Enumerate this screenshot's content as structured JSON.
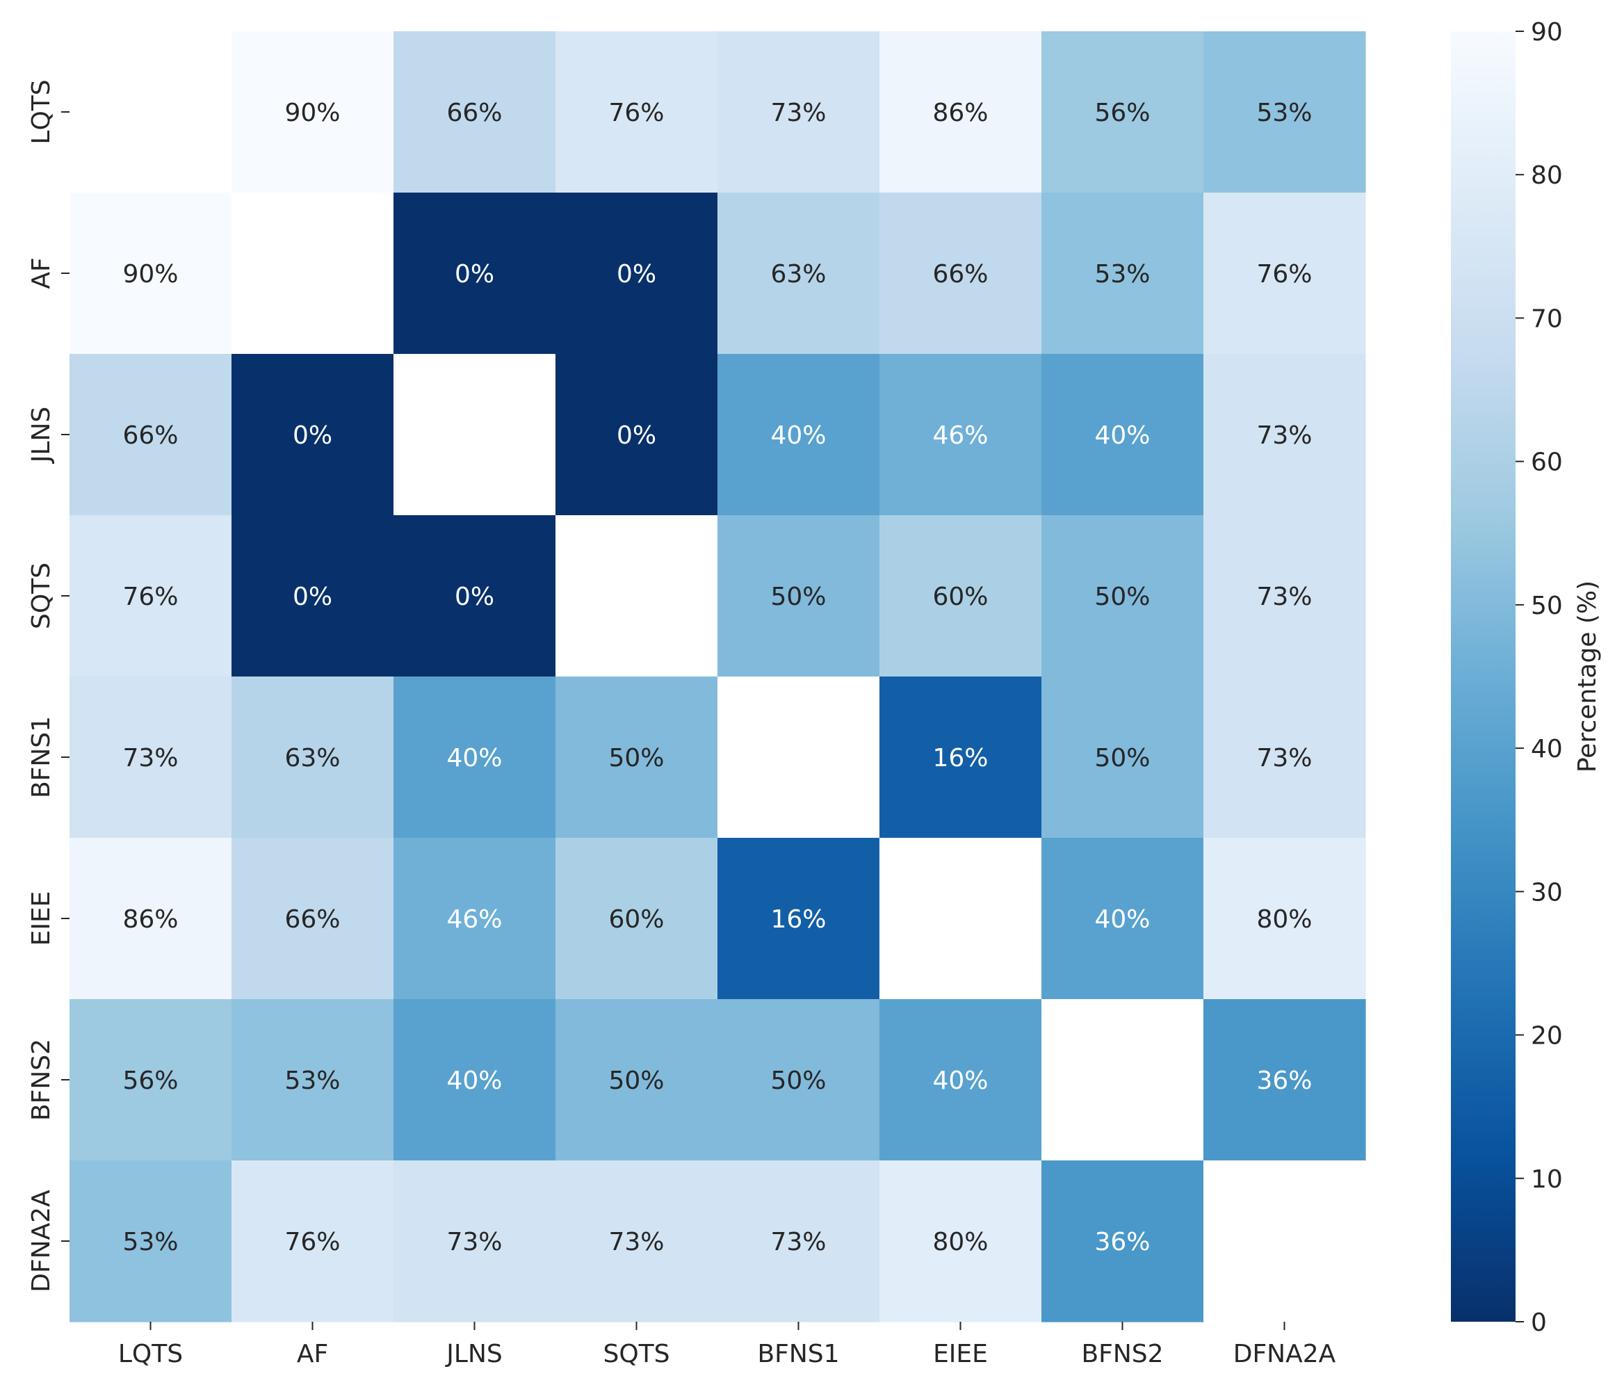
{
  "chart_data": {
    "type": "heatmap",
    "title": "",
    "xlabel": "",
    "ylabel": "",
    "x_categories": [
      "LQTS",
      "AF",
      "JLNS",
      "SQTS",
      "BFNS1",
      "EIEE",
      "BFNS2",
      "DFNA2A"
    ],
    "y_categories": [
      "LQTS",
      "AF",
      "JLNS",
      "SQTS",
      "BFNS1",
      "EIEE",
      "BFNS2",
      "DFNA2A"
    ],
    "values": [
      [
        null,
        90,
        66,
        76,
        73,
        86,
        56,
        53
      ],
      [
        90,
        null,
        0,
        0,
        63,
        66,
        53,
        76
      ],
      [
        66,
        0,
        null,
        0,
        40,
        46,
        40,
        73
      ],
      [
        76,
        0,
        0,
        null,
        50,
        60,
        50,
        73
      ],
      [
        73,
        63,
        40,
        50,
        null,
        16,
        50,
        73
      ],
      [
        86,
        66,
        46,
        60,
        16,
        null,
        40,
        80
      ],
      [
        56,
        53,
        40,
        50,
        50,
        40,
        null,
        36
      ],
      [
        53,
        76,
        73,
        73,
        73,
        80,
        36,
        null
      ]
    ],
    "value_suffix": "%",
    "colormap": "Blues_r",
    "vmin": 0,
    "vmax": 90,
    "colorbar": {
      "label": "Percentage (%)",
      "ticks": [
        0,
        10,
        20,
        30,
        40,
        50,
        60,
        70,
        80,
        90
      ],
      "placement": "right"
    },
    "grid": false,
    "colors": {
      "dark_text": "#262626",
      "light_text": "#ffffff",
      "missing_cell": "#ffffff"
    }
  }
}
